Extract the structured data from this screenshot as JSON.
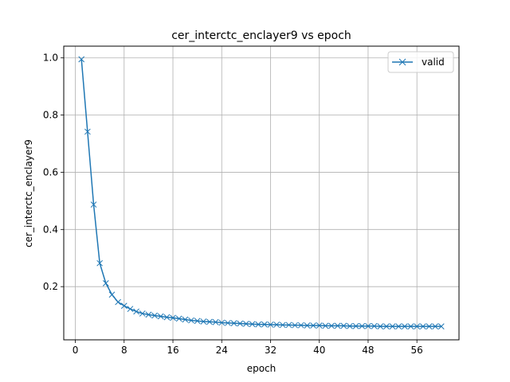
{
  "chart_data": {
    "type": "line",
    "title": "cer_interctc_enclayer9 vs epoch",
    "xlabel": "epoch",
    "ylabel": "cer_interctc_enclayer9",
    "xlim": [
      -1.9,
      62.9
    ],
    "ylim": [
      0.014,
      1.041
    ],
    "xticks": [
      0,
      8,
      16,
      24,
      32,
      40,
      48,
      56
    ],
    "yticks": [
      0.2,
      0.4,
      0.6,
      0.8,
      1.0
    ],
    "ytick_labels": [
      "0.2",
      "0.4",
      "0.6",
      "0.8",
      "1.0"
    ],
    "grid": true,
    "legend_position": "top-right",
    "series": [
      {
        "name": "valid",
        "color": "#1f77b4",
        "marker": "x",
        "x": [
          1,
          2,
          3,
          4,
          5,
          6,
          7,
          8,
          9,
          10,
          11,
          12,
          13,
          14,
          15,
          16,
          17,
          18,
          19,
          20,
          21,
          22,
          23,
          24,
          25,
          26,
          27,
          28,
          29,
          30,
          31,
          32,
          33,
          34,
          35,
          36,
          37,
          38,
          39,
          40,
          41,
          42,
          43,
          44,
          45,
          46,
          47,
          48,
          49,
          50,
          51,
          52,
          53,
          54,
          55,
          56,
          57,
          58,
          59,
          60
        ],
        "y": [
          0.995,
          0.742,
          0.487,
          0.282,
          0.212,
          0.172,
          0.146,
          0.133,
          0.122,
          0.113,
          0.106,
          0.102,
          0.099,
          0.096,
          0.093,
          0.091,
          0.088,
          0.085,
          0.082,
          0.08,
          0.078,
          0.077,
          0.076,
          0.074,
          0.073,
          0.072,
          0.071,
          0.07,
          0.069,
          0.068,
          0.068,
          0.067,
          0.067,
          0.066,
          0.066,
          0.065,
          0.065,
          0.064,
          0.064,
          0.064,
          0.063,
          0.063,
          0.063,
          0.063,
          0.062,
          0.062,
          0.062,
          0.062,
          0.062,
          0.061,
          0.061,
          0.061,
          0.061,
          0.061,
          0.061,
          0.061,
          0.061,
          0.061,
          0.061,
          0.061
        ]
      }
    ]
  }
}
